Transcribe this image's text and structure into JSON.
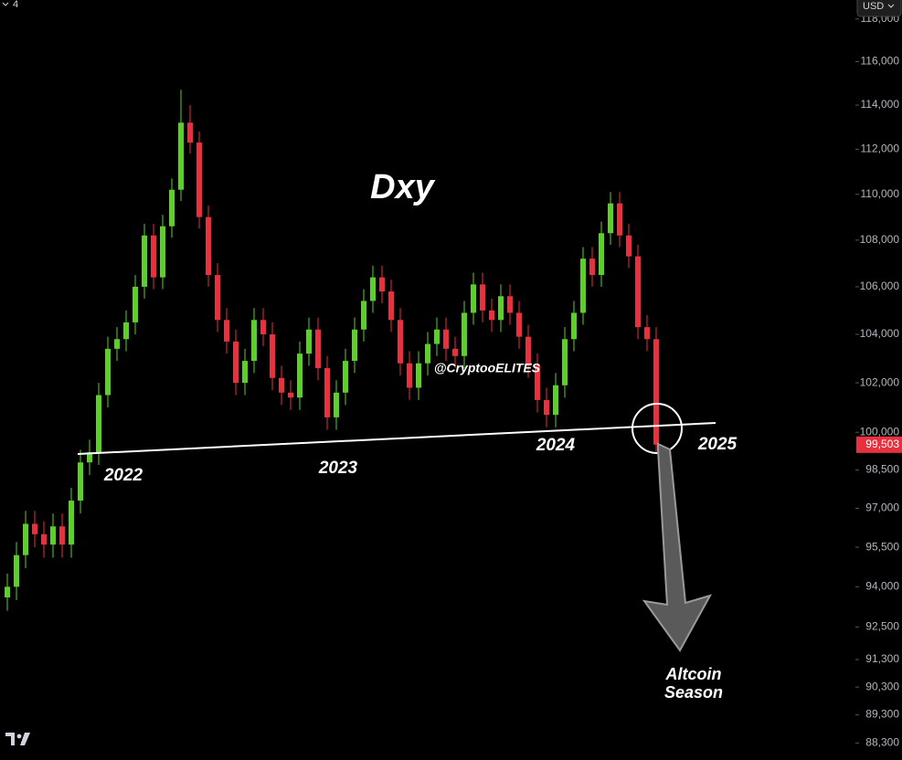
{
  "chart_data": {
    "type": "candlestick",
    "title": "Dxy",
    "watermark": "@CryptooELITES",
    "year_labels": [
      "2022",
      "2023",
      "2024",
      "2025"
    ],
    "callout": [
      "Altcoin",
      "Season"
    ],
    "currency": "USD",
    "interval_badge": "4",
    "last_price_label": "99,503",
    "log_scale": true,
    "up_color": "#5ccf2b",
    "down_color": "#e8313f",
    "ylim": [
      87.7,
      118.9
    ],
    "yticks": [
      {
        "value": 118,
        "label": "118,000"
      },
      {
        "value": 116,
        "label": "116,000"
      },
      {
        "value": 114,
        "label": "114,000"
      },
      {
        "value": 112,
        "label": "112,000"
      },
      {
        "value": 110,
        "label": "110,000"
      },
      {
        "value": 108,
        "label": "108,000"
      },
      {
        "value": 106,
        "label": "106,000"
      },
      {
        "value": 104,
        "label": "104,000"
      },
      {
        "value": 102,
        "label": "102,000"
      },
      {
        "value": 100,
        "label": "100,000"
      },
      {
        "value": 98.5,
        "label": "98,500"
      },
      {
        "value": 97,
        "label": "97,000"
      },
      {
        "value": 95.5,
        "label": "95,500"
      },
      {
        "value": 94,
        "label": "94,000"
      },
      {
        "value": 92.5,
        "label": "92,500"
      },
      {
        "value": 91.3,
        "label": "91,300"
      },
      {
        "value": 90.3,
        "label": "90,300"
      },
      {
        "value": 89.3,
        "label": "89,300"
      },
      {
        "value": 88.3,
        "label": "88,300"
      }
    ],
    "open": [
      93.6,
      94.0,
      95.2,
      96.4,
      96.0,
      95.6,
      96.3,
      95.6,
      97.3,
      98.8,
      99.2,
      101.5,
      103.4,
      103.8,
      104.5,
      106.0,
      108.2,
      106.4,
      108.6,
      110.2,
      113.2,
      112.3,
      109.0,
      106.5,
      104.6,
      103.7,
      102.0,
      102.9,
      104.6,
      104.0,
      102.2,
      101.6,
      101.4,
      103.2,
      104.2,
      102.6,
      100.6,
      101.6,
      102.9,
      104.2,
      105.4,
      106.4,
      105.8,
      104.6,
      102.8,
      101.8,
      102.8,
      103.6,
      104.2,
      103.4,
      103.1,
      104.9,
      106.1,
      105.0,
      104.6,
      105.6,
      104.9,
      103.9,
      102.7,
      101.3,
      100.7,
      101.9,
      103.8,
      104.9,
      107.2,
      106.5,
      108.3,
      109.6,
      108.2,
      107.3,
      104.3,
      103.8
    ],
    "high": [
      94.5,
      95.7,
      96.9,
      96.9,
      96.5,
      96.8,
      96.8,
      97.8,
      99.3,
      99.7,
      102.0,
      103.9,
      104.3,
      105.0,
      106.5,
      108.7,
      108.7,
      109.1,
      110.7,
      114.7,
      114.0,
      112.8,
      109.5,
      107.0,
      105.1,
      104.2,
      103.4,
      105.1,
      105.1,
      104.5,
      102.7,
      102.1,
      103.7,
      104.7,
      104.7,
      103.1,
      102.1,
      103.4,
      104.7,
      105.9,
      106.9,
      106.9,
      106.3,
      105.1,
      103.3,
      103.3,
      104.1,
      104.7,
      104.7,
      103.9,
      105.4,
      106.6,
      106.6,
      105.5,
      106.1,
      106.1,
      105.4,
      104.4,
      103.2,
      101.8,
      102.4,
      104.3,
      105.4,
      107.7,
      107.7,
      108.8,
      110.1,
      110.1,
      108.7,
      107.8,
      104.8,
      104.3
    ],
    "low": [
      93.1,
      93.5,
      94.7,
      95.5,
      95.1,
      95.1,
      95.1,
      95.1,
      96.8,
      98.3,
      98.7,
      101.0,
      102.9,
      103.3,
      104.0,
      105.5,
      105.9,
      105.9,
      108.1,
      109.7,
      111.8,
      108.5,
      106.0,
      104.1,
      103.2,
      101.5,
      101.5,
      102.4,
      103.5,
      101.7,
      101.1,
      100.9,
      100.9,
      102.7,
      102.1,
      100.1,
      100.1,
      101.1,
      102.4,
      103.7,
      104.9,
      105.3,
      104.1,
      102.3,
      101.3,
      101.3,
      102.3,
      103.1,
      102.9,
      102.6,
      102.6,
      104.4,
      104.5,
      104.1,
      104.1,
      104.4,
      103.4,
      102.2,
      100.8,
      100.2,
      100.2,
      101.4,
      103.3,
      104.4,
      106.0,
      106.0,
      107.8,
      107.7,
      106.8,
      103.8,
      103.3,
      99.2
    ],
    "close": [
      94.0,
      95.2,
      96.4,
      96.0,
      95.6,
      96.3,
      95.6,
      97.3,
      98.8,
      99.2,
      101.5,
      103.4,
      103.8,
      104.5,
      106.0,
      108.2,
      106.4,
      108.6,
      110.2,
      113.2,
      112.3,
      109.0,
      106.5,
      104.6,
      103.7,
      102.0,
      102.9,
      104.6,
      104.0,
      102.2,
      101.6,
      101.4,
      103.2,
      104.2,
      102.6,
      100.6,
      101.6,
      102.9,
      104.2,
      105.4,
      106.4,
      105.8,
      104.6,
      102.8,
      101.8,
      102.8,
      103.6,
      104.2,
      103.4,
      103.1,
      104.9,
      106.1,
      105.0,
      104.6,
      105.6,
      104.9,
      103.9,
      102.7,
      101.3,
      100.7,
      101.9,
      103.8,
      104.9,
      107.2,
      106.5,
      108.3,
      109.6,
      108.2,
      107.3,
      104.3,
      103.8,
      99.503
    ]
  }
}
